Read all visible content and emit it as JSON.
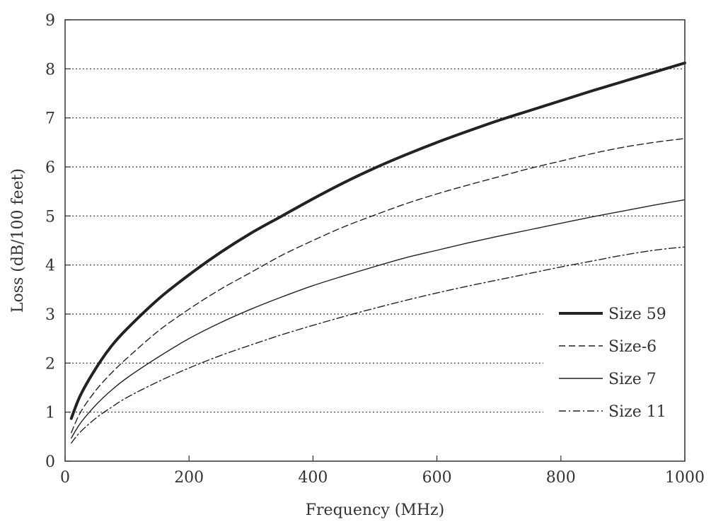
{
  "chart_data": {
    "type": "line",
    "title": "",
    "xlabel": "Frequency (MHz)",
    "ylabel": "Loss (dB/100 feet)",
    "xlim": [
      0,
      1000
    ],
    "ylim": [
      0,
      9
    ],
    "xticks": [
      0,
      200,
      400,
      600,
      800,
      1000
    ],
    "yticks": [
      0,
      1,
      2,
      3,
      4,
      5,
      6,
      7,
      8,
      9
    ],
    "grid": "horizontal dotted",
    "legend_position": "right",
    "series": [
      {
        "name": "Size 59",
        "style": "thick-solid",
        "x": [
          10,
          25,
          50,
          75,
          100,
          150,
          200,
          250,
          300,
          350,
          400,
          450,
          500,
          550,
          600,
          650,
          700,
          750,
          800,
          850,
          900,
          950,
          1000
        ],
        "y": [
          0.87,
          1.35,
          1.9,
          2.35,
          2.7,
          3.3,
          3.8,
          4.25,
          4.65,
          5.0,
          5.35,
          5.68,
          5.98,
          6.25,
          6.5,
          6.73,
          6.95,
          7.15,
          7.35,
          7.55,
          7.74,
          7.93,
          8.12
        ]
      },
      {
        "name": "Size-6",
        "style": "dashed",
        "x": [
          10,
          25,
          50,
          75,
          100,
          150,
          200,
          250,
          300,
          350,
          400,
          450,
          500,
          550,
          600,
          650,
          700,
          750,
          800,
          850,
          900,
          950,
          1000
        ],
        "y": [
          0.58,
          1.0,
          1.45,
          1.8,
          2.1,
          2.65,
          3.1,
          3.5,
          3.85,
          4.2,
          4.5,
          4.78,
          5.02,
          5.25,
          5.45,
          5.63,
          5.8,
          5.97,
          6.12,
          6.27,
          6.4,
          6.5,
          6.58
        ]
      },
      {
        "name": "Size 7",
        "style": "solid",
        "x": [
          10,
          25,
          50,
          75,
          100,
          150,
          200,
          250,
          300,
          350,
          400,
          450,
          500,
          550,
          600,
          650,
          700,
          750,
          800,
          850,
          900,
          950,
          1000
        ],
        "y": [
          0.47,
          0.78,
          1.15,
          1.45,
          1.7,
          2.12,
          2.5,
          2.82,
          3.1,
          3.35,
          3.58,
          3.78,
          3.97,
          4.15,
          4.3,
          4.45,
          4.59,
          4.72,
          4.85,
          4.98,
          5.1,
          5.22,
          5.33
        ]
      },
      {
        "name": "Size 11",
        "style": "dash-dot",
        "x": [
          10,
          25,
          50,
          75,
          100,
          150,
          200,
          250,
          300,
          350,
          400,
          450,
          500,
          550,
          600,
          650,
          700,
          750,
          800,
          850,
          900,
          950,
          1000
        ],
        "y": [
          0.37,
          0.6,
          0.88,
          1.1,
          1.3,
          1.62,
          1.9,
          2.15,
          2.37,
          2.58,
          2.77,
          2.95,
          3.12,
          3.28,
          3.43,
          3.57,
          3.7,
          3.83,
          3.96,
          4.08,
          4.2,
          4.3,
          4.37
        ]
      }
    ]
  },
  "colors": {
    "background": "#ffffff",
    "axis": "#333333",
    "grid": "#333333",
    "series": "#222222"
  }
}
